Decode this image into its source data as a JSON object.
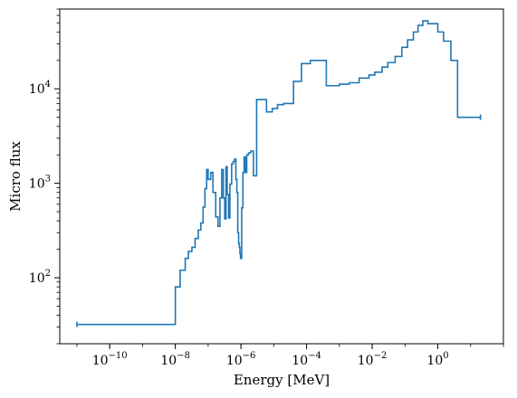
{
  "chart_data": {
    "type": "line",
    "drawstyle": "steps",
    "title": "",
    "xlabel": "Energy [MeV]",
    "ylabel": "Micro flux",
    "xscale": "log",
    "yscale": "log",
    "xlim": [
      3e-12,
      100
    ],
    "ylim": [
      20,
      70000
    ],
    "grid": false,
    "legend": "none",
    "color": "#1f77b4",
    "x_ticks": [
      {
        "base": "10",
        "exp": "−10",
        "value": 1e-10
      },
      {
        "base": "10",
        "exp": "−8",
        "value": 1e-08
      },
      {
        "base": "10",
        "exp": "−6",
        "value": 1e-06
      },
      {
        "base": "10",
        "exp": "−4",
        "value": 0.0001
      },
      {
        "base": "10",
        "exp": "−2",
        "value": 0.01
      },
      {
        "base": "10",
        "exp": "0",
        "value": 1
      }
    ],
    "y_ticks": [
      {
        "base": "10",
        "exp": "2",
        "value": 100
      },
      {
        "base": "10",
        "exp": "3",
        "value": 1000
      },
      {
        "base": "10",
        "exp": "4",
        "value": 10000
      }
    ],
    "series": [
      {
        "x": [
          1e-11,
          5e-09,
          1e-08,
          1.4e-08,
          2e-08,
          2.5e-08,
          3.2e-08,
          4e-08,
          5e-08,
          6e-08,
          7e-08,
          8e-08,
          9e-08,
          1e-07,
          1.2e-07,
          1.4e-07,
          1.7e-07,
          2e-07,
          2.3e-07,
          2.6e-07,
          2.9e-07,
          3.2e-07,
          3.5e-07,
          3.8e-07,
          4.2e-07,
          4.6e-07,
          5.2e-07,
          5.8e-07,
          6.4e-07,
          7e-07,
          7.5e-07,
          8e-07,
          8.5e-07,
          8.9e-07,
          9.3e-07,
          9.7e-07,
          1.05e-06,
          1.15e-06,
          1.25e-06,
          1.35e-06,
          1.5e-06,
          1.7e-06,
          2e-06,
          2.4e-06,
          3e-06,
          6e-06,
          9e-06,
          1.3e-05,
          2e-05,
          4e-05,
          7e-05,
          0.00013,
          0.0004,
          0.001,
          0.002,
          0.004,
          0.008,
          0.012,
          0.02,
          0.03,
          0.05,
          0.08,
          0.12,
          0.18,
          0.25,
          0.35,
          0.5,
          1,
          1.5,
          2.5,
          4,
          20
        ],
        "y": [
          32,
          32,
          80,
          120,
          160,
          190,
          210,
          260,
          320,
          380,
          560,
          880,
          1400,
          1100,
          1300,
          800,
          440,
          350,
          700,
          1400,
          700,
          420,
          1500,
          760,
          430,
          980,
          1600,
          1700,
          1800,
          1100,
          800,
          300,
          230,
          210,
          180,
          160,
          550,
          1300,
          1900,
          1300,
          2000,
          2100,
          2200,
          1200,
          7700,
          5700,
          6200,
          6800,
          7000,
          12000,
          18500,
          20000,
          10800,
          11200,
          11600,
          13000,
          14000,
          15000,
          17000,
          19000,
          22000,
          27500,
          33000,
          40000,
          47000,
          52500,
          49000,
          40000,
          32000,
          20000,
          5000,
          5000
        ]
      }
    ]
  }
}
